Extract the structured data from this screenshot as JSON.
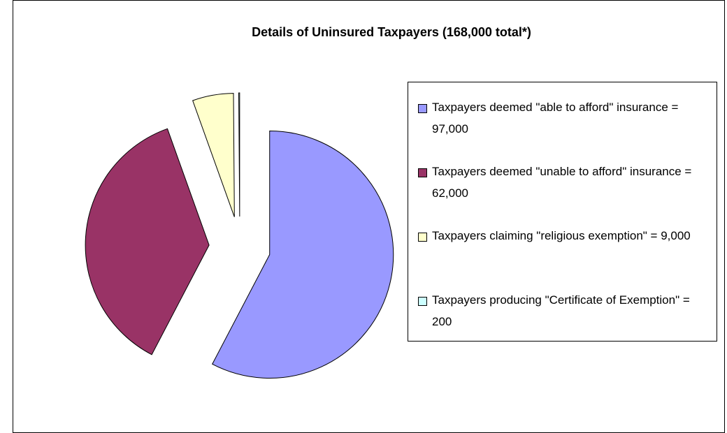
{
  "chart_data": {
    "type": "pie",
    "title": "Details of Uninsured Taxpayers (168,000 total*)",
    "categories": [
      "Taxpayers deemed \"able to afford\" insurance = 97,000",
      "Taxpayers deemed \"unable to afford\" insurance = 62,000",
      "Taxpayers claiming \"religious exemption\" = 9,000",
      "Taxpayers producing \"Certificate of Exemption\" = 200"
    ],
    "values": [
      97000,
      62000,
      9000,
      200
    ],
    "colors": [
      "#9999ff",
      "#993366",
      "#ffffcc",
      "#ccffff"
    ],
    "legend": "right"
  }
}
